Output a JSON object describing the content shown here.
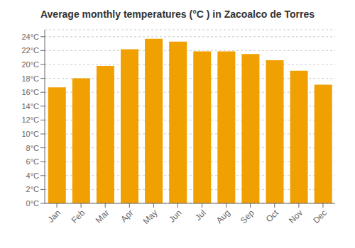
{
  "chart_data": {
    "type": "bar",
    "title": "Average monthly temperatures (°C ) in Zacoalco de Torres",
    "categories": [
      "Jan",
      "Feb",
      "Mar",
      "Apr",
      "May",
      "Jun",
      "Jul",
      "Aug",
      "Sep",
      "Oct",
      "Nov",
      "Dec"
    ],
    "values": [
      16.7,
      18.0,
      19.8,
      22.2,
      23.7,
      23.3,
      21.9,
      21.9,
      21.5,
      20.6,
      19.1,
      17.1
    ],
    "color": "#F0A000",
    "ylim": [
      0,
      25
    ],
    "yticks": [
      {
        "value": 0,
        "label": "0°C"
      },
      {
        "value": 2,
        "label": "2°C"
      },
      {
        "value": 4,
        "label": "4°C"
      },
      {
        "value": 6,
        "label": "6°C"
      },
      {
        "value": 8,
        "label": "8°C"
      },
      {
        "value": 10,
        "label": "10°C"
      },
      {
        "value": 12,
        "label": "12°C"
      },
      {
        "value": 14,
        "label": "14°C"
      },
      {
        "value": 16,
        "label": "16°C"
      },
      {
        "value": 18,
        "label": "18°C"
      },
      {
        "value": 20,
        "label": "20°C"
      },
      {
        "value": 22,
        "label": "22°C"
      },
      {
        "value": 24,
        "label": "24°C"
      }
    ],
    "grid": true
  }
}
